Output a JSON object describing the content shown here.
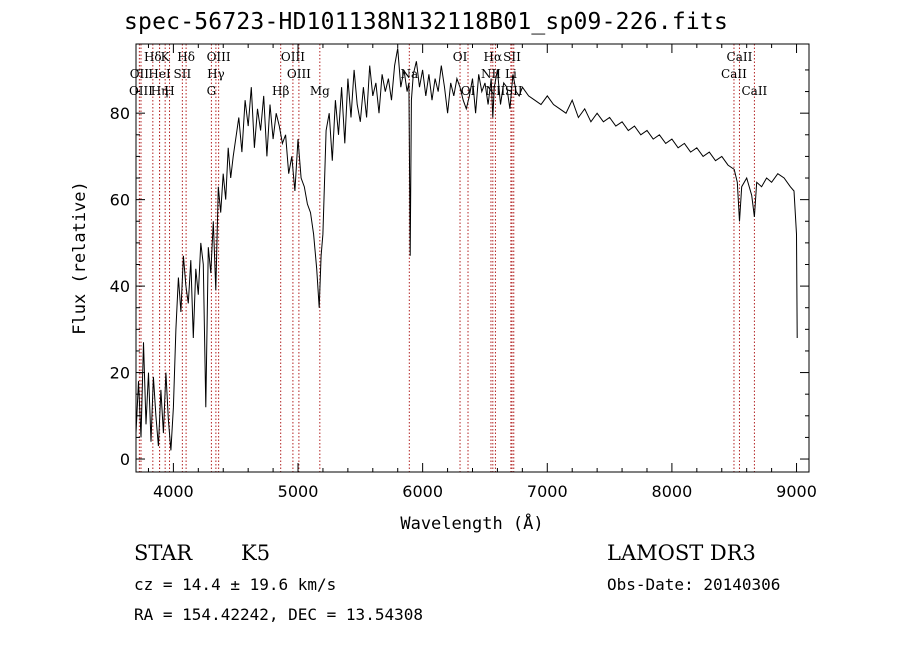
{
  "chart_data": {
    "type": "line",
    "title": "spec-56723-HD101138N132118B01_sp09-226.fits",
    "xlabel": "Wavelength (Å)",
    "ylabel": "Flux (relative)",
    "xlim": [
      3700,
      9100
    ],
    "ylim": [
      -3,
      96
    ],
    "xticks": [
      4000,
      5000,
      6000,
      7000,
      8000,
      9000
    ],
    "yticks": [
      0,
      20,
      40,
      60,
      80
    ],
    "xtick_labels": [
      "4000",
      "5000",
      "6000",
      "7000",
      "8000",
      "9000"
    ],
    "ytick_labels": [
      "0",
      "20",
      "40",
      "60",
      "80"
    ],
    "series": [
      {
        "name": "flux",
        "x": [
          3700,
          3720,
          3740,
          3760,
          3780,
          3800,
          3820,
          3840,
          3860,
          3880,
          3900,
          3920,
          3940,
          3960,
          3980,
          4000,
          4020,
          4040,
          4060,
          4080,
          4100,
          4120,
          4140,
          4160,
          4180,
          4200,
          4220,
          4240,
          4260,
          4280,
          4300,
          4320,
          4340,
          4360,
          4380,
          4400,
          4420,
          4440,
          4460,
          4480,
          4500,
          4525,
          4550,
          4575,
          4600,
          4625,
          4650,
          4675,
          4700,
          4725,
          4750,
          4775,
          4800,
          4825,
          4850,
          4875,
          4900,
          4925,
          4950,
          4975,
          5000,
          5025,
          5050,
          5075,
          5100,
          5125,
          5150,
          5170,
          5185,
          5200,
          5225,
          5250,
          5275,
          5300,
          5325,
          5350,
          5375,
          5400,
          5425,
          5450,
          5475,
          5500,
          5525,
          5550,
          5575,
          5600,
          5625,
          5650,
          5675,
          5700,
          5725,
          5750,
          5775,
          5800,
          5825,
          5850,
          5875,
          5890,
          5900,
          5910,
          5925,
          5950,
          5975,
          6000,
          6025,
          6050,
          6075,
          6100,
          6125,
          6150,
          6175,
          6200,
          6225,
          6250,
          6275,
          6300,
          6325,
          6350,
          6375,
          6400,
          6425,
          6450,
          6475,
          6500,
          6525,
          6550,
          6563,
          6575,
          6600,
          6625,
          6650,
          6675,
          6700,
          6725,
          6750,
          6775,
          6800,
          6850,
          6900,
          6950,
          7000,
          7050,
          7100,
          7150,
          7200,
          7250,
          7300,
          7350,
          7400,
          7450,
          7500,
          7550,
          7600,
          7650,
          7700,
          7750,
          7800,
          7850,
          7900,
          7950,
          8000,
          8050,
          8100,
          8150,
          8200,
          8250,
          8300,
          8350,
          8400,
          8450,
          8500,
          8525,
          8542,
          8560,
          8600,
          8640,
          8662,
          8680,
          8720,
          8760,
          8800,
          8850,
          8900,
          8950,
          8980,
          9000,
          9005
        ],
        "values": [
          6,
          18,
          5,
          27,
          8,
          20,
          4,
          19,
          10,
          3,
          16,
          6,
          20,
          9,
          2,
          12,
          30,
          42,
          34,
          47,
          40,
          36,
          46,
          28,
          44,
          38,
          50,
          45,
          12,
          49,
          43,
          55,
          39,
          63,
          57,
          66,
          60,
          72,
          65,
          70,
          74,
          79,
          71,
          83,
          77,
          86,
          72,
          81,
          76,
          84,
          70,
          82,
          74,
          80,
          77,
          73,
          75,
          66,
          70,
          62,
          74,
          65,
          63,
          59,
          57,
          52,
          44,
          35,
          47,
          52,
          76,
          80,
          69,
          83,
          75,
          86,
          73,
          88,
          79,
          90,
          82,
          78,
          86,
          79,
          91,
          84,
          87,
          80,
          89,
          85,
          88,
          83,
          91,
          95,
          86,
          90,
          85,
          87,
          47,
          83,
          89,
          92,
          86,
          90,
          84,
          89,
          83,
          88,
          85,
          91,
          86,
          80,
          87,
          84,
          88,
          86,
          83,
          81,
          84,
          88,
          80,
          89,
          85,
          87,
          82,
          88,
          79,
          86,
          90,
          82,
          87,
          86,
          81,
          89,
          85,
          84,
          86,
          84,
          83,
          82,
          84,
          82,
          81,
          80,
          83,
          79,
          81,
          78,
          80,
          78,
          79,
          77,
          78,
          76,
          77,
          75,
          76,
          74,
          75,
          73,
          74,
          72,
          73,
          71,
          72,
          70,
          71,
          69,
          70,
          68,
          67,
          64,
          55,
          63,
          65,
          61,
          56,
          64,
          63,
          65,
          64,
          66,
          65,
          63,
          62,
          52,
          28
        ]
      }
    ],
    "line_markers": [
      {
        "label": "Hδ",
        "x": 3835,
        "row": 1
      },
      {
        "label": "OII",
        "x": 3727,
        "row": 2
      },
      {
        "label": "OIII",
        "x": 3740,
        "row": 3
      },
      {
        "label": "K",
        "x": 3934,
        "row": 1
      },
      {
        "label": "HeI",
        "x": 3889,
        "row": 2
      },
      {
        "label": "Hη",
        "x": 3889,
        "row": 3
      },
      {
        "label": "H",
        "x": 3969,
        "row": 3
      },
      {
        "label": "Hδ",
        "x": 4102,
        "row": 1
      },
      {
        "label": "SII",
        "x": 4072,
        "row": 2
      },
      {
        "label": "OIII",
        "x": 4363,
        "row": 1
      },
      {
        "label": "Hγ",
        "x": 4341,
        "row": 2
      },
      {
        "label": "G",
        "x": 4305,
        "row": 3
      },
      {
        "label": "Hβ",
        "x": 4861,
        "row": 3
      },
      {
        "label": "OIII",
        "x": 4959,
        "row": 1
      },
      {
        "label": "OIII",
        "x": 5007,
        "row": 2
      },
      {
        "label": "Mg",
        "x": 5175,
        "row": 3
      },
      {
        "label": "Na",
        "x": 5893,
        "row": 2
      },
      {
        "label": "OI",
        "x": 6300,
        "row": 1
      },
      {
        "label": "OI",
        "x": 6364,
        "row": 3
      },
      {
        "label": "Hα",
        "x": 6563,
        "row": 1
      },
      {
        "label": "NII",
        "x": 6548,
        "row": 2
      },
      {
        "label": "NII",
        "x": 6584,
        "row": 3
      },
      {
        "label": "SII",
        "x": 6717,
        "row": 1
      },
      {
        "label": "Li",
        "x": 6708,
        "row": 2
      },
      {
        "label": "SII",
        "x": 6731,
        "row": 3
      },
      {
        "label": "CaII",
        "x": 8542,
        "row": 1
      },
      {
        "label": "CaII",
        "x": 8498,
        "row": 2
      },
      {
        "label": "CaII",
        "x": 8662,
        "row": 3
      }
    ]
  },
  "info": {
    "object_class": "STAR",
    "subclass": "K5",
    "survey": "LAMOST DR3",
    "redshift": "cz = 14.4 ± 19.6 km/s",
    "obs_date": "Obs-Date: 20140306",
    "coords": "RA = 154.42242, DEC =  13.54308"
  },
  "colors": {
    "line": "#000000",
    "marker": "#b22222",
    "axis": "#000000"
  }
}
